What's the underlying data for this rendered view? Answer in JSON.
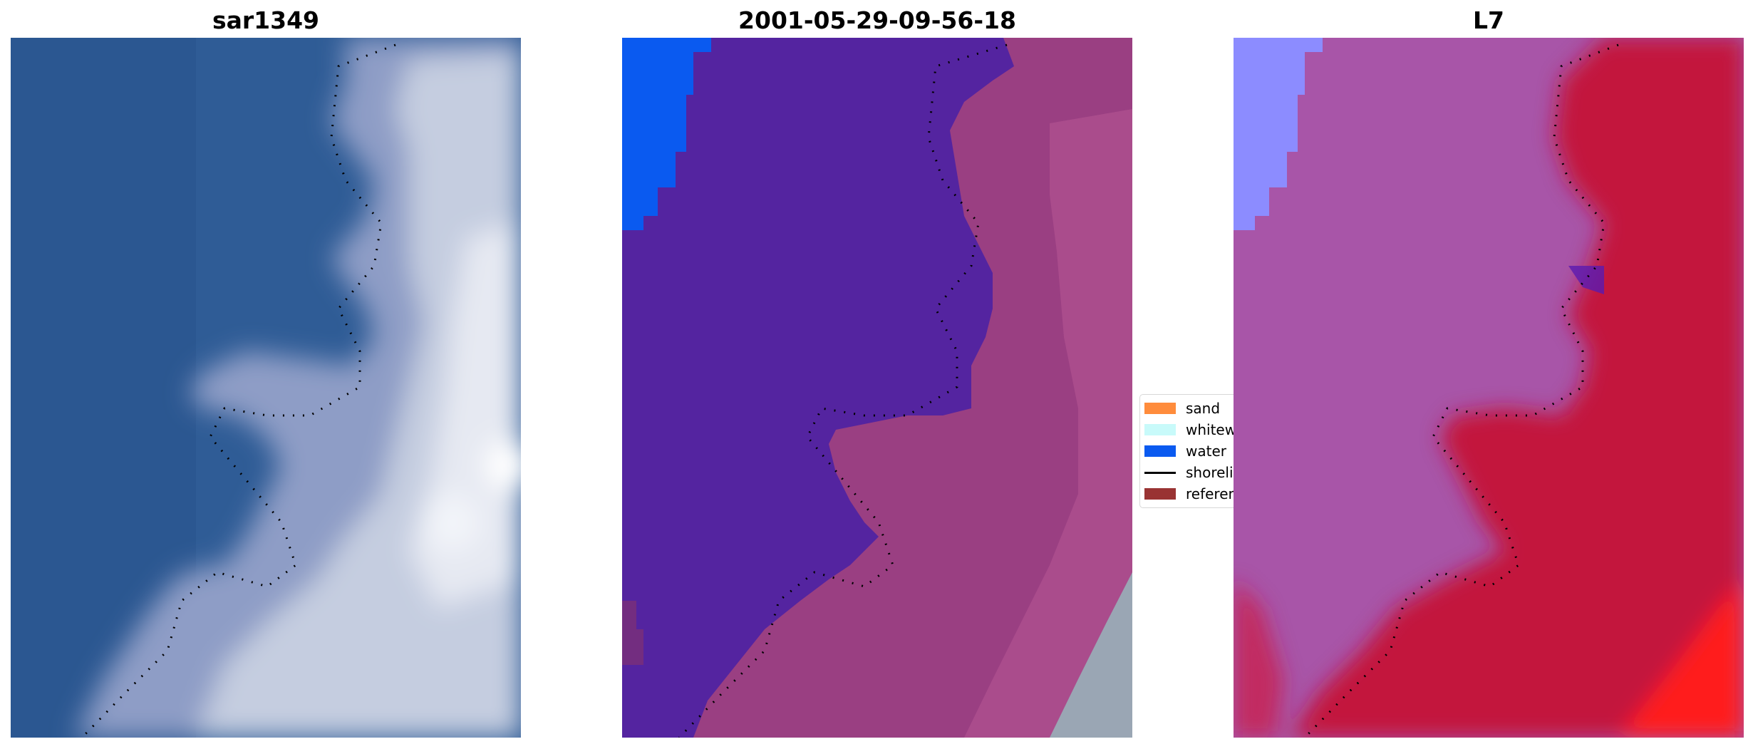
{
  "panels": [
    {
      "title": "sar1349",
      "image": "rgb-composite"
    },
    {
      "title": "2001-05-29-09-56-18",
      "image": "classified-overlay"
    },
    {
      "title": "L7",
      "image": "probability-overlay"
    }
  ],
  "legend": {
    "items": [
      {
        "label": "sand",
        "color": "#ff8c3c"
      },
      {
        "label": "whitewater",
        "color": "#c8fafa"
      },
      {
        "label": "water",
        "color": "#0a5af0"
      },
      {
        "label": "shoreline",
        "color": "#000000",
        "type": "line"
      },
      {
        "label": "reference",
        "color": "#993333"
      }
    ]
  },
  "colors": {
    "sea_blue": "#2f5c96",
    "surf_white": "#c5cde0",
    "class_water": "#5424a0",
    "class_sand_overlay": "#9a3f82",
    "class_water_blue": "#0a5af0",
    "l7_water": "#a855a8",
    "l7_land": "#c3123e",
    "l7_light_blue": "#8c8cff"
  }
}
